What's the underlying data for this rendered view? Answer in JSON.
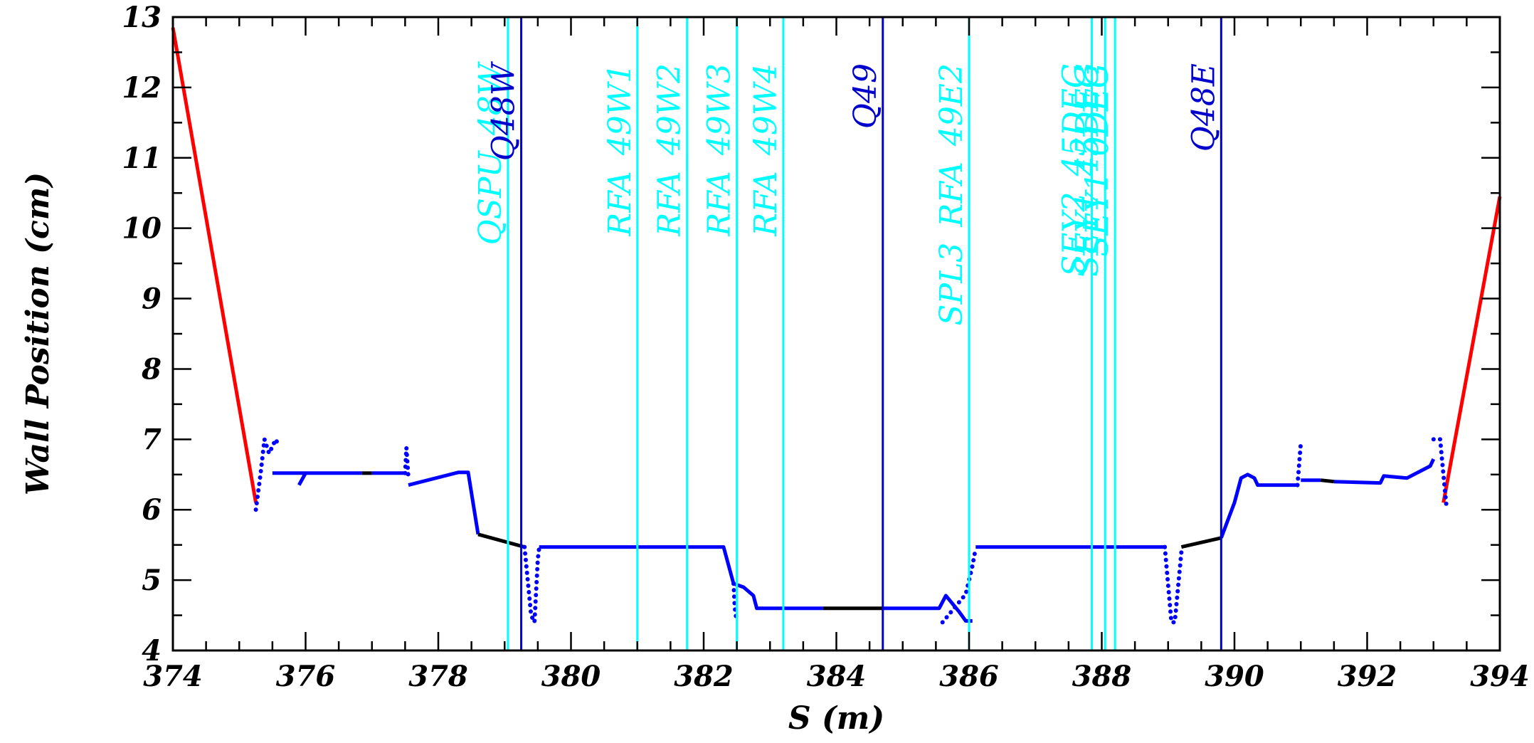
{
  "chart_data": {
    "type": "line",
    "title": "",
    "xlabel": "S (m)",
    "ylabel": "Wall Position (cm)",
    "xlim": [
      374,
      394
    ],
    "ylim": [
      4,
      13
    ],
    "x_ticks": [
      374,
      376,
      378,
      380,
      382,
      384,
      386,
      388,
      390,
      392,
      394
    ],
    "x_tick_labels": [
      "374",
      "376",
      "378",
      "380",
      "382",
      "384",
      "386",
      "388",
      "390",
      "392",
      "394"
    ],
    "y_ticks": [
      4,
      5,
      6,
      7,
      8,
      9,
      10,
      11,
      12,
      13
    ],
    "y_tick_labels": [
      "4",
      "5",
      "6",
      "7",
      "8",
      "9",
      "10",
      "11",
      "12",
      "13"
    ],
    "grid": false,
    "colors": {
      "red": "#ff0000",
      "blue": "#0000ff",
      "black": "#000000",
      "cyan": "#00ffff",
      "quad": "#0000cc"
    },
    "series": [
      {
        "color": "red",
        "style": "solid",
        "points": [
          [
            374.0,
            12.85
          ],
          [
            375.25,
            6.1
          ]
        ]
      },
      {
        "color": "red",
        "style": "solid",
        "points": [
          [
            393.15,
            6.1
          ],
          [
            394.0,
            10.45
          ]
        ]
      },
      {
        "color": "blue",
        "style": "dotted",
        "points": [
          [
            375.25,
            6.0
          ],
          [
            375.32,
            6.5
          ],
          [
            375.38,
            7.0
          ],
          [
            375.45,
            6.8
          ],
          [
            375.5,
            6.9
          ],
          [
            375.55,
            7.0
          ],
          [
            375.6,
            6.9
          ]
        ]
      },
      {
        "color": "blue",
        "style": "solid",
        "points": [
          [
            375.5,
            6.52
          ],
          [
            376.85,
            6.52
          ]
        ]
      },
      {
        "color": "blue",
        "style": "solid",
        "points": [
          [
            375.9,
            6.35
          ],
          [
            376.0,
            6.52
          ]
        ]
      },
      {
        "color": "black",
        "style": "solid",
        "points": [
          [
            376.85,
            6.52
          ],
          [
            377.0,
            6.52
          ]
        ]
      },
      {
        "color": "blue",
        "style": "solid",
        "points": [
          [
            377.0,
            6.52
          ],
          [
            377.5,
            6.52
          ]
        ]
      },
      {
        "color": "blue",
        "style": "dotted",
        "points": [
          [
            377.5,
            6.52
          ],
          [
            377.52,
            6.88
          ],
          [
            377.55,
            6.45
          ]
        ]
      },
      {
        "color": "blue",
        "style": "solid",
        "points": [
          [
            377.55,
            6.35
          ],
          [
            378.3,
            6.53
          ],
          [
            378.45,
            6.53
          ],
          [
            378.6,
            5.65
          ]
        ]
      },
      {
        "color": "black",
        "style": "solid",
        "points": [
          [
            378.6,
            5.65
          ],
          [
            379.3,
            5.47
          ]
        ]
      },
      {
        "color": "blue",
        "style": "dotted",
        "points": [
          [
            379.3,
            5.47
          ],
          [
            379.4,
            4.5
          ],
          [
            379.45,
            4.4
          ],
          [
            379.5,
            5.3
          ],
          [
            379.52,
            5.45
          ]
        ]
      },
      {
        "color": "blue",
        "style": "solid",
        "points": [
          [
            379.52,
            5.47
          ],
          [
            382.3,
            5.47
          ],
          [
            382.45,
            4.95
          ],
          [
            382.6,
            4.9
          ],
          [
            382.75,
            4.78
          ],
          [
            382.8,
            4.6
          ],
          [
            383.8,
            4.6
          ]
        ]
      },
      {
        "color": "blue",
        "style": "dotted",
        "points": [
          [
            382.45,
            4.95
          ],
          [
            382.47,
            4.6
          ],
          [
            382.5,
            4.4
          ]
        ]
      },
      {
        "color": "black",
        "style": "solid",
        "points": [
          [
            383.8,
            4.6
          ],
          [
            384.7,
            4.6
          ]
        ]
      },
      {
        "color": "blue",
        "style": "solid",
        "points": [
          [
            384.7,
            4.6
          ],
          [
            385.55,
            4.6
          ],
          [
            385.65,
            4.78
          ],
          [
            385.85,
            4.55
          ],
          [
            385.95,
            4.42
          ],
          [
            386.05,
            4.42
          ]
        ]
      },
      {
        "color": "blue",
        "style": "dotted",
        "points": [
          [
            385.6,
            4.4
          ],
          [
            385.95,
            4.8
          ],
          [
            386.0,
            5.0
          ],
          [
            386.05,
            5.2
          ],
          [
            386.1,
            5.45
          ]
        ]
      },
      {
        "color": "blue",
        "style": "solid",
        "points": [
          [
            386.1,
            5.47
          ],
          [
            388.95,
            5.47
          ]
        ]
      },
      {
        "color": "blue",
        "style": "dotted",
        "points": [
          [
            388.95,
            5.47
          ],
          [
            389.05,
            4.4
          ],
          [
            389.1,
            4.4
          ],
          [
            389.2,
            5.4
          ]
        ]
      },
      {
        "color": "black",
        "style": "solid",
        "points": [
          [
            389.2,
            5.47
          ],
          [
            389.8,
            5.6
          ]
        ]
      },
      {
        "color": "blue",
        "style": "solid",
        "points": [
          [
            389.8,
            5.6
          ],
          [
            390.0,
            6.1
          ],
          [
            390.1,
            6.45
          ],
          [
            390.2,
            6.5
          ],
          [
            390.3,
            6.45
          ],
          [
            390.35,
            6.35
          ],
          [
            390.95,
            6.35
          ]
        ]
      },
      {
        "color": "blue",
        "style": "dotted",
        "points": [
          [
            390.95,
            6.35
          ],
          [
            391.0,
            6.95
          ]
        ]
      },
      {
        "color": "blue",
        "style": "solid",
        "points": [
          [
            391.0,
            6.42
          ],
          [
            391.3,
            6.42
          ]
        ]
      },
      {
        "color": "black",
        "style": "solid",
        "points": [
          [
            391.3,
            6.42
          ],
          [
            391.5,
            6.4
          ]
        ]
      },
      {
        "color": "blue",
        "style": "solid",
        "points": [
          [
            391.5,
            6.4
          ],
          [
            392.2,
            6.38
          ],
          [
            392.25,
            6.48
          ],
          [
            392.6,
            6.45
          ],
          [
            392.95,
            6.62
          ],
          [
            393.0,
            6.72
          ]
        ]
      },
      {
        "color": "blue",
        "style": "dotted",
        "points": [
          [
            393.0,
            7.0
          ],
          [
            393.1,
            7.0
          ],
          [
            393.15,
            6.5
          ],
          [
            393.2,
            6.0
          ]
        ]
      }
    ],
    "markers": [
      {
        "x": 379.05,
        "label": "QSPU_48W",
        "color": "cyan"
      },
      {
        "x": 379.25,
        "label": "Q48W",
        "color": "quad"
      },
      {
        "x": 381.0,
        "label": "RFA_49W1",
        "color": "cyan"
      },
      {
        "x": 381.75,
        "label": "RFA_49W2",
        "color": "cyan"
      },
      {
        "x": 382.5,
        "label": "RFA_49W3",
        "color": "cyan"
      },
      {
        "x": 383.2,
        "label": "RFA_49W4",
        "color": "cyan"
      },
      {
        "x": 384.7,
        "label": "Q49",
        "color": "quad"
      },
      {
        "x": 386.0,
        "label": "SPL3_RFA_49E2",
        "color": "cyan"
      },
      {
        "x": 387.85,
        "label": "SEY2_45DEG",
        "color": "cyan"
      },
      {
        "x": 388.05,
        "label": "SEY1_45DEG",
        "color": "cyan"
      },
      {
        "x": 388.2,
        "label": "SEY1_0DEG",
        "color": "cyan"
      },
      {
        "x": 389.8,
        "label": "Q48E",
        "color": "quad"
      }
    ]
  }
}
